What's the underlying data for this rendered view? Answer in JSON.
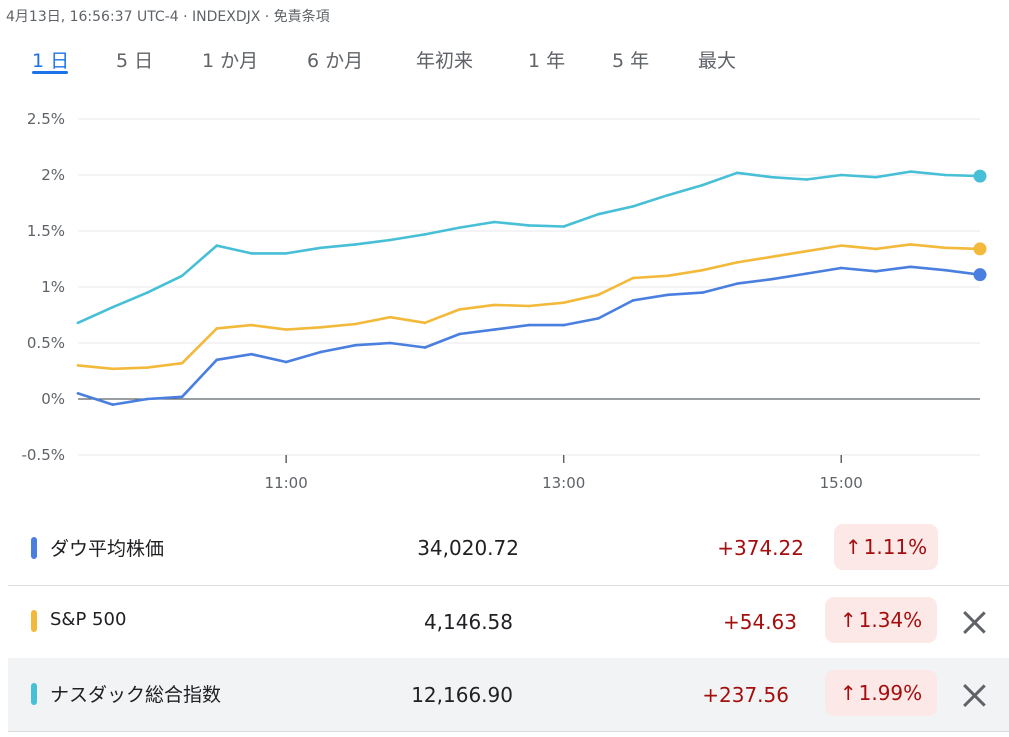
{
  "header": {
    "meta": "4月13日, 16:56:37 UTC-4 · INDEXDJX · 免責条項"
  },
  "tabs": [
    "1 日",
    "5 日",
    "1 か月",
    "6 か月",
    "年初来",
    "1 年",
    "5 年",
    "最大"
  ],
  "active_tab": "1 日",
  "colors": {
    "dow": "#4a7fe0",
    "sp500": "#f2b93b",
    "nasdaq": "#47bfd6",
    "accent": "#1a73e8",
    "down_text": "#a50e0e",
    "pill_bg": "#fce8e6"
  },
  "chart_data": {
    "type": "line",
    "title": "",
    "xlabel": "",
    "ylabel": "",
    "x_ticks": [
      "11:00",
      "13:00",
      "15:00"
    ],
    "x_range": [
      "9:30",
      "16:00"
    ],
    "y_ticks": [
      "2.5%",
      "2%",
      "1.5%",
      "1%",
      "0.5%",
      "0%",
      "-0.5%"
    ],
    "ylim": [
      -0.5,
      2.5
    ],
    "grid": true,
    "x": [
      "9:30",
      "9:45",
      "10:00",
      "10:15",
      "10:30",
      "10:45",
      "11:00",
      "11:15",
      "11:30",
      "11:45",
      "12:00",
      "12:15",
      "12:30",
      "12:45",
      "13:00",
      "13:15",
      "13:30",
      "13:45",
      "14:00",
      "14:15",
      "14:30",
      "14:45",
      "15:00",
      "15:15",
      "15:30",
      "15:45",
      "16:00"
    ],
    "series": [
      {
        "name": "ダウ平均株価",
        "color": "#4a7fe0",
        "values": [
          0.05,
          -0.05,
          0.0,
          0.02,
          0.35,
          0.4,
          0.33,
          0.42,
          0.48,
          0.5,
          0.46,
          0.58,
          0.62,
          0.66,
          0.66,
          0.72,
          0.88,
          0.93,
          0.95,
          1.03,
          1.07,
          1.12,
          1.17,
          1.14,
          1.18,
          1.15,
          1.11
        ]
      },
      {
        "name": "S&P 500",
        "color": "#f2b93b",
        "values": [
          0.3,
          0.27,
          0.28,
          0.32,
          0.63,
          0.66,
          0.62,
          0.64,
          0.67,
          0.73,
          0.68,
          0.8,
          0.84,
          0.83,
          0.86,
          0.93,
          1.08,
          1.1,
          1.15,
          1.22,
          1.27,
          1.32,
          1.37,
          1.34,
          1.38,
          1.35,
          1.34
        ]
      },
      {
        "name": "ナスダック総合指数",
        "color": "#47bfd6",
        "values": [
          0.68,
          0.82,
          0.95,
          1.1,
          1.37,
          1.3,
          1.3,
          1.35,
          1.38,
          1.42,
          1.47,
          1.53,
          1.58,
          1.55,
          1.54,
          1.65,
          1.72,
          1.82,
          1.91,
          2.02,
          1.98,
          1.96,
          2.0,
          1.98,
          2.03,
          2.0,
          1.99
        ]
      }
    ]
  },
  "rows": [
    {
      "name": "ダウ平均株価",
      "price": "34,020.72",
      "change": "+374.22",
      "pct": "1.11%",
      "closable": false
    },
    {
      "name": "S&P 500",
      "price": "4,146.58",
      "change": "+54.63",
      "pct": "1.34%",
      "closable": true
    },
    {
      "name": "ナスダック総合指数",
      "price": "12,166.90",
      "change": "+237.56",
      "pct": "1.99%",
      "closable": true
    }
  ],
  "arrow_glyph": "↑"
}
